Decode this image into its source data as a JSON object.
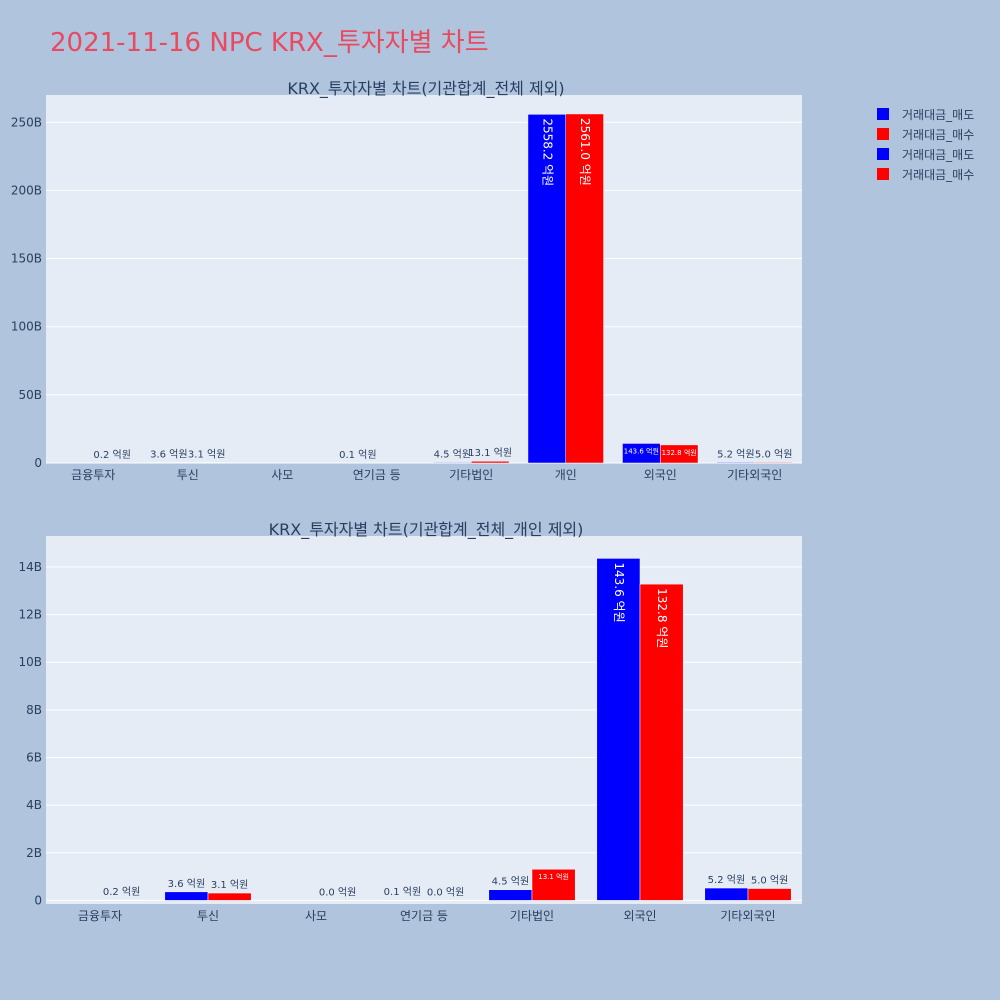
{
  "page": {
    "title": "2021-11-16 NPC KRX_투자자별 차트"
  },
  "legend": [
    {
      "name": "거래대금_매도",
      "color": "#0000ff"
    },
    {
      "name": "거래대금_매수",
      "color": "#ff0000"
    },
    {
      "name": "거래대금_매도",
      "color": "#0000ff"
    },
    {
      "name": "거래대금_매수",
      "color": "#ff0000"
    }
  ],
  "chart_data": [
    {
      "type": "bar",
      "title": "KRX_투자자별 차트(기관합계_전체 제외)",
      "categories": [
        "금융투자",
        "투신",
        "사모",
        "연기금 등",
        "기타법인",
        "개인",
        "외국인",
        "기타외국인"
      ],
      "series": [
        {
          "name": "거래대금_매도",
          "color": "#0000ff",
          "values": [
            0.0,
            0.36,
            0.0,
            0.01,
            0.45,
            255.82,
            14.36,
            0.52
          ],
          "labels": [
            "",
            "3.6 억원",
            "",
            "0.1 억원",
            "4.5 억원",
            "2558.2 억원",
            "143.6 억원",
            "5.2 억원"
          ]
        },
        {
          "name": "거래대금_매수",
          "color": "#ff0000",
          "values": [
            0.02,
            0.31,
            0.0,
            0.0,
            1.31,
            256.1,
            13.28,
            0.5
          ],
          "labels": [
            "0.2 억원",
            "3.1 억원",
            "",
            "",
            "13.1 억원",
            "2561.0 억원",
            "132.8 억원",
            "5.0 억원"
          ]
        }
      ],
      "ylim": [
        0,
        270
      ],
      "yticks": [
        0,
        50,
        100,
        150,
        200,
        250
      ],
      "ytick_labels": [
        "0",
        "50B",
        "100B",
        "150B",
        "200B",
        "250B"
      ]
    },
    {
      "type": "bar",
      "title": "KRX_투자자별 차트(기관합계_전체_개인 제외)",
      "categories": [
        "금융투자",
        "투신",
        "사모",
        "연기금 등",
        "기타법인",
        "외국인",
        "기타외국인"
      ],
      "series": [
        {
          "name": "거래대금_매도",
          "color": "#0000ff",
          "values": [
            0.0,
            0.36,
            0.0,
            0.01,
            0.45,
            14.36,
            0.52
          ],
          "labels": [
            "",
            "3.6 억원",
            "",
            "0.1 억원",
            "4.5 억원",
            "143.6 억원",
            "5.2 억원"
          ]
        },
        {
          "name": "거래대금_매수",
          "color": "#ff0000",
          "values": [
            0.02,
            0.31,
            0.0,
            0.0,
            1.31,
            13.28,
            0.5
          ],
          "labels": [
            "0.2 억원",
            "3.1 억원",
            "0.0 억원",
            "0.0 억원",
            "13.1 억원",
            "132.8 억원",
            "5.0 억원"
          ]
        }
      ],
      "ylim": [
        -0.15,
        15.3
      ],
      "yticks": [
        0,
        2,
        4,
        6,
        8,
        10,
        12,
        14
      ],
      "ytick_labels": [
        "0",
        "2B",
        "4B",
        "6B",
        "8B",
        "10B",
        "12B",
        "14B"
      ]
    }
  ]
}
